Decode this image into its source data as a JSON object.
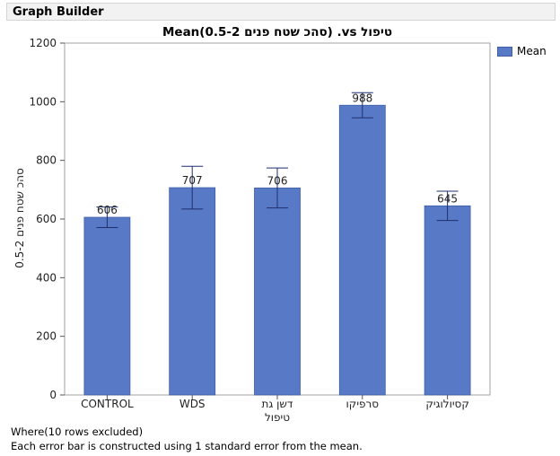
{
  "panel": {
    "title": "Graph Builder"
  },
  "chart_data": {
    "type": "bar",
    "title": "טיפול vs. (סהכ שטח פנים 0.5-2)Mean",
    "ylabel": "סהכ שטח פנים 0.5-2",
    "xlabel": "",
    "categories": [
      "CONTROL",
      "WDS",
      "דשן גת טיפול",
      "סרפיקו",
      "קסיולוגיק"
    ],
    "series": [
      {
        "name": "Mean",
        "values": [
          606,
          707,
          706,
          988,
          645
        ],
        "error_low": [
          571,
          634,
          638,
          945,
          595
        ],
        "error_high": [
          641,
          780,
          774,
          1031,
          695
        ]
      }
    ],
    "data_labels": [
      "606",
      "707",
      "706",
      "988",
      "645"
    ],
    "ylim": [
      0,
      1200
    ],
    "yticks": [
      0,
      200,
      400,
      600,
      800,
      1000,
      1200
    ],
    "grid": false,
    "legend": "right",
    "bar_color": "#5879c5"
  },
  "footer": {
    "where": "Where(10 rows excluded)",
    "note": "Each error bar is constructed using 1 standard error from the mean."
  }
}
